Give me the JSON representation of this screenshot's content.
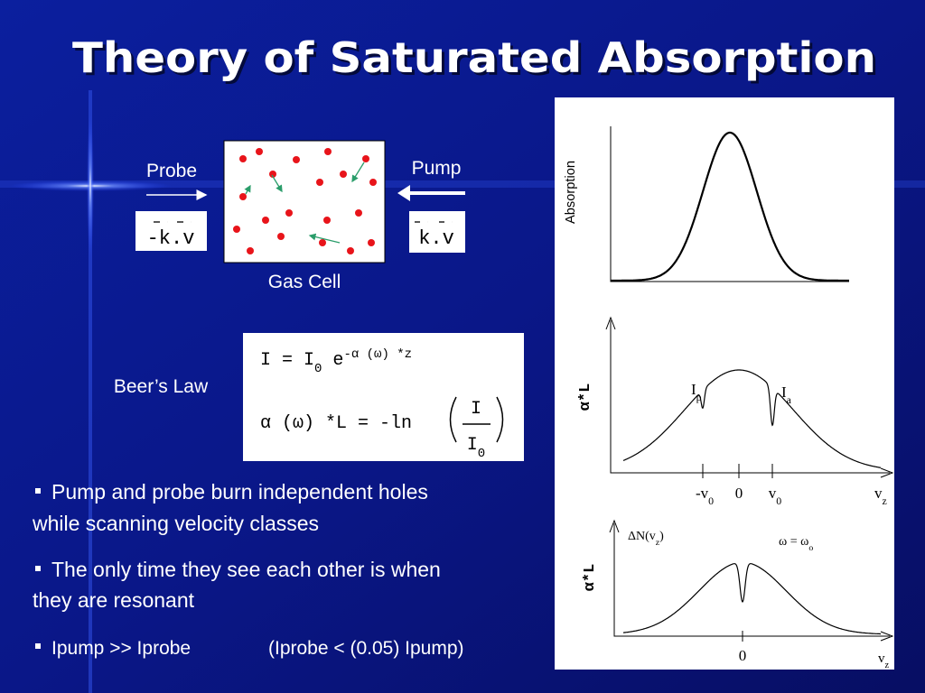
{
  "title": "Theory of Saturated Absorption",
  "diagram": {
    "probe": "Probe",
    "pump": "Pump",
    "probe_term": "-k.v",
    "pump_term": "k.v",
    "cell": "Gas Cell"
  },
  "beers_law": {
    "label": "Beer’s Law",
    "eq1": [
      "I = I",
      "0",
      " e",
      "-α (ω) *z"
    ],
    "eq2_lhs": "α (ω) *L = -ln",
    "eq2_num": "I",
    "eq2_den": [
      "I",
      "0"
    ]
  },
  "bullets": [
    {
      "lines": [
        "Pump and probe burn independent holes",
        "while scanning velocity classes"
      ]
    },
    {
      "lines": [
        "The only time they see each other is when",
        "they are resonant"
      ]
    },
    {
      "lines": [
        "Ipump >> Iprobe"
      ],
      "aside": "(Iprobe < (0.05) Ipump)"
    }
  ],
  "graphs": {
    "top": {
      "ylabel": "Absorption"
    },
    "middle": {
      "ylabel": "α*L",
      "peaks": [
        [
          "I",
          "p"
        ],
        [
          "I",
          "a"
        ]
      ],
      "xticks": [
        [
          "-v",
          "0"
        ],
        [
          "0"
        ],
        [
          "v",
          "0"
        ]
      ],
      "xlabel": [
        "v",
        "z"
      ]
    },
    "bottom": {
      "ylabel": "α*L",
      "curve_label": [
        "ΔN(v",
        "z",
        ")"
      ],
      "condition": [
        "ω = ω",
        "o"
      ],
      "xtick": "0",
      "xlabel": [
        "v",
        "z"
      ]
    }
  }
}
